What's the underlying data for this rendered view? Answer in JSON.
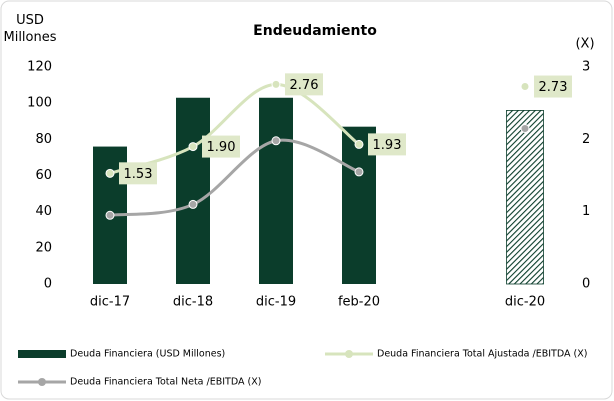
{
  "chart_data": {
    "type": "bar",
    "title": "Endeudamiento",
    "ylabel": "USD Millones",
    "y2label": "(X)",
    "categories": [
      "dic-17",
      "dic-18",
      "dic-19",
      "feb-20",
      null,
      "dic-20"
    ],
    "ylim": [
      0,
      120
    ],
    "yticks": [
      0,
      20,
      40,
      60,
      80,
      100,
      120
    ],
    "y2lim": [
      0,
      3
    ],
    "y2ticks": [
      0,
      1,
      2,
      3
    ],
    "legend": "bottom",
    "series": [
      {
        "name": "Deuda Financiera (USD Millones)",
        "type": "bar",
        "color": "#0b3d2b",
        "values": [
          76,
          103,
          103,
          87,
          null,
          96
        ],
        "patterns": [
          null,
          null,
          null,
          null,
          null,
          "hatch"
        ]
      },
      {
        "name": "Deuda Financiera Total Ajustada /EBITDA (X)",
        "type": "line",
        "axis": "y2",
        "color": "#d7e4bd",
        "values": [
          1.53,
          1.9,
          2.76,
          1.93,
          null,
          2.73
        ],
        "value_labels": [
          "1.53",
          "1.90",
          "2.76",
          "1.93",
          null,
          "2.73"
        ]
      },
      {
        "name": "Deuda Financiera Total Neta /EBITDA (X)",
        "type": "line",
        "axis": "y2",
        "color": "#a6a6a6",
        "values": [
          0.95,
          1.1,
          1.98,
          1.55,
          null,
          2.15
        ]
      }
    ]
  }
}
